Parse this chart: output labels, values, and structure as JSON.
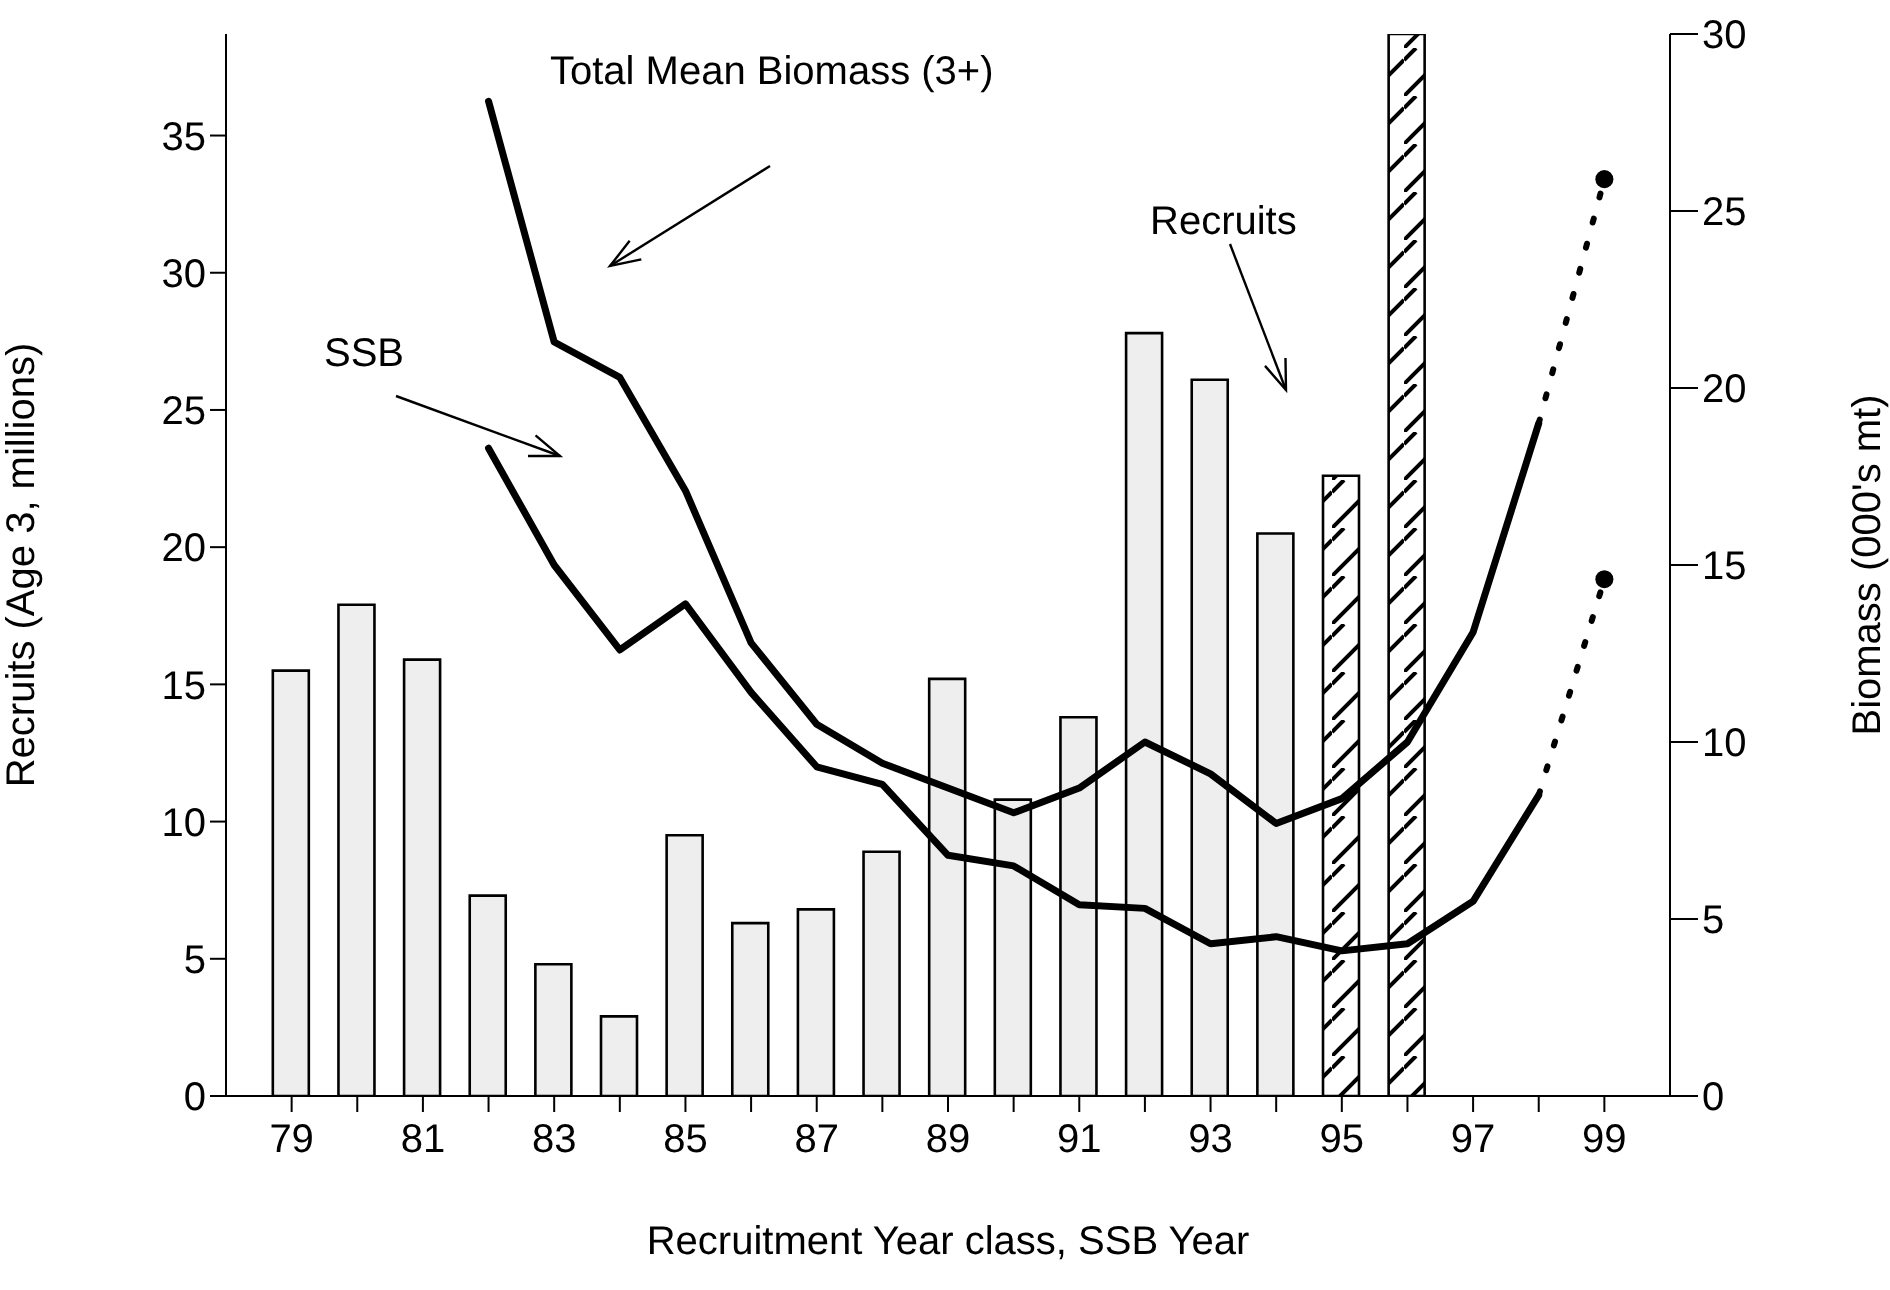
{
  "chart_data": {
    "type": "bar",
    "xlabel": "Recruitment Year class, SSB Year",
    "ylabel": "Recruits (Age 3, millions)",
    "y2label": "Biomass (000's mt)",
    "x": [
      79,
      80,
      81,
      82,
      83,
      84,
      85,
      86,
      87,
      88,
      89,
      90,
      91,
      92,
      93,
      94,
      95,
      96
    ],
    "stacked": true,
    "series": [
      {
        "color": "#eeeeee",
        "values": [
          15.5,
          17.9,
          15.9,
          7.3,
          4.8,
          2.9,
          9.5,
          6.3,
          6.8,
          8.9,
          15.2,
          10.8,
          13.8,
          27.8,
          26.1,
          20.5,
          null,
          null
        ]
      },
      {
        "color": "#000000",
        "values": [
          null,
          null,
          null,
          null,
          null,
          null,
          null,
          null,
          null,
          null,
          null,
          null,
          null,
          null,
          null,
          null,
          22.6,
          38.7
        ]
      },
      {
        "type": "line",
        "axis": "y2",
        "color": "#000000",
        "x": [
          82,
          83,
          84,
          85,
          86,
          87,
          88,
          89,
          90,
          91,
          92,
          93,
          94,
          95,
          96,
          97,
          98
        ],
        "values": [
          28.1,
          21.3,
          20.3,
          17.1,
          12.8,
          10.5,
          9.4,
          8.7,
          8.0,
          8.7,
          10.0,
          9.1,
          7.7,
          8.4,
          10.0,
          13.1,
          19.0
        ]
      },
      {
        "type": "line",
        "axis": "y2",
        "color": "#000000",
        "x": [
          82,
          83,
          84,
          85,
          86,
          87,
          88,
          89,
          90,
          91,
          92,
          93,
          94,
          95,
          96,
          97,
          98
        ],
        "values": [
          18.3,
          15.0,
          12.6,
          13.9,
          11.4,
          9.3,
          8.8,
          6.8,
          6.5,
          5.4,
          5.3,
          4.3,
          4.5,
          4.1,
          4.3,
          5.5,
          8.5
        ]
      },
      {
        "type": "line",
        "axis": "y2",
        "color": "#000000",
        "line_style": "dotted",
        "x": [
          98,
          99
        ],
        "values": [
          19.0,
          25.9
        ]
      },
      {
        "type": "line",
        "axis": "y2",
        "color": "#000000",
        "line_style": "dotted",
        "x": [
          98,
          99
        ],
        "values": [
          8.5,
          14.6
        ]
      },
      {
        "type": "scatter",
        "axis": "y2",
        "color": "#000000",
        "marker": "circle",
        "x": [
          99,
          99
        ],
        "values": [
          25.9,
          14.6
        ]
      }
    ],
    "xlim": [
      78,
      100
    ],
    "xticks": [
      79,
      {
        "value": 80,
        "label": null
      },
      81,
      {
        "value": 82,
        "label": null
      },
      83,
      {
        "value": 84,
        "label": null
      },
      85,
      {
        "value": 86,
        "label": null
      },
      87,
      {
        "value": 88,
        "label": null
      },
      89,
      {
        "value": 90,
        "label": null
      },
      91,
      {
        "value": 92,
        "label": null
      },
      93,
      {
        "value": 94,
        "label": null
      },
      95,
      {
        "value": 96,
        "label": null
      },
      97,
      {
        "value": 98,
        "label": null
      },
      99
    ],
    "ylim": [
      0,
      38.7
    ],
    "yticks": [
      0,
      5,
      10,
      15,
      20,
      25,
      30,
      35
    ],
    "y2lim": [
      0,
      30
    ],
    "y2ticks": [
      0,
      5,
      10,
      15,
      20,
      25,
      30
    ],
    "annotations": [
      "Total Mean Biomass (3+)",
      "SSB",
      "Recruits"
    ]
  }
}
